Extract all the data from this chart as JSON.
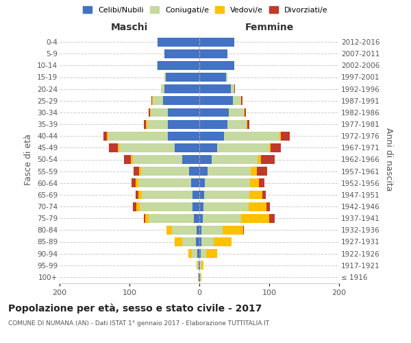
{
  "age_groups": [
    "100+",
    "95-99",
    "90-94",
    "85-89",
    "80-84",
    "75-79",
    "70-74",
    "65-69",
    "60-64",
    "55-59",
    "50-54",
    "45-49",
    "40-44",
    "35-39",
    "30-34",
    "25-29",
    "20-24",
    "15-19",
    "10-14",
    "5-9",
    "0-4"
  ],
  "birth_years": [
    "≤ 1916",
    "1917-1921",
    "1922-1926",
    "1927-1931",
    "1932-1936",
    "1937-1941",
    "1942-1946",
    "1947-1951",
    "1952-1956",
    "1957-1961",
    "1962-1966",
    "1967-1971",
    "1972-1976",
    "1977-1981",
    "1982-1986",
    "1987-1991",
    "1992-1996",
    "1997-2001",
    "2002-2006",
    "2007-2011",
    "2012-2016"
  ],
  "maschi": {
    "celibi": [
      1,
      1,
      3,
      5,
      4,
      8,
      10,
      10,
      12,
      15,
      25,
      35,
      45,
      45,
      45,
      52,
      50,
      48,
      60,
      50,
      60
    ],
    "coniugati": [
      1,
      2,
      8,
      20,
      35,
      65,
      75,
      72,
      75,
      68,
      70,
      80,
      85,
      30,
      25,
      15,
      5,
      2,
      1,
      0,
      0
    ],
    "vedovi": [
      0,
      1,
      5,
      10,
      8,
      4,
      5,
      5,
      4,
      3,
      3,
      2,
      2,
      1,
      1,
      1,
      0,
      0,
      0,
      0,
      0
    ],
    "divorziati": [
      0,
      0,
      0,
      0,
      0,
      2,
      5,
      4,
      6,
      8,
      10,
      12,
      5,
      3,
      2,
      1,
      0,
      0,
      0,
      0,
      0
    ]
  },
  "femmine": {
    "nubili": [
      1,
      1,
      2,
      3,
      3,
      5,
      6,
      7,
      8,
      12,
      18,
      25,
      35,
      40,
      42,
      48,
      45,
      38,
      50,
      40,
      50
    ],
    "coniugate": [
      1,
      2,
      8,
      18,
      30,
      55,
      65,
      65,
      65,
      62,
      65,
      75,
      80,
      28,
      22,
      12,
      5,
      2,
      0,
      0,
      0
    ],
    "vedove": [
      1,
      3,
      15,
      25,
      30,
      40,
      25,
      18,
      12,
      8,
      5,
      2,
      2,
      1,
      1,
      0,
      0,
      0,
      0,
      0,
      0
    ],
    "divorziate": [
      0,
      0,
      0,
      0,
      1,
      8,
      5,
      5,
      8,
      15,
      20,
      15,
      12,
      3,
      2,
      2,
      1,
      0,
      0,
      0,
      0
    ]
  },
  "colors": {
    "celibi": "#4472c4",
    "coniugati": "#c5d9a0",
    "vedovi": "#ffc000",
    "divorziati": "#c0392b"
  },
  "xlim": 200,
  "title": "Popolazione per età, sesso e stato civile - 2017",
  "subtitle": "COMUNE DI NUMANA (AN) - Dati ISTAT 1° gennaio 2017 - Elaborazione TUTTITALIA.IT",
  "ylabel_left": "Fasce di età",
  "ylabel_right": "Anni di nascita",
  "xlabel_left": "Maschi",
  "xlabel_right": "Femmine",
  "legend_labels": [
    "Celibi/Nubili",
    "Coniugati/e",
    "Vedovi/e",
    "Divorziati/e"
  ],
  "background_color": "#ffffff",
  "grid_color": "#cccccc"
}
